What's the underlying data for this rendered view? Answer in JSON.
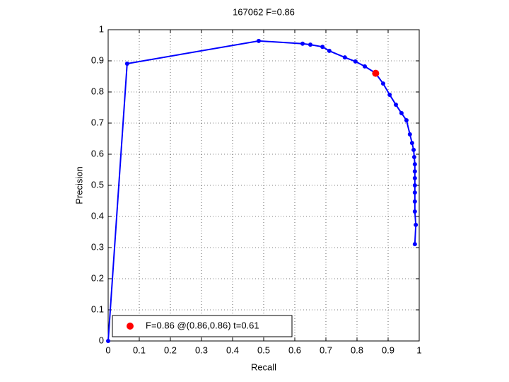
{
  "chart_data": {
    "type": "line",
    "title": "167062 F=0.86",
    "x_label": "Recall",
    "y_label": "Precision",
    "xlim": [
      0,
      1
    ],
    "ylim": [
      0,
      1
    ],
    "xticks": [
      0,
      0.1,
      0.2,
      0.3,
      0.4,
      0.5,
      0.6,
      0.7,
      0.8,
      0.9,
      1
    ],
    "yticks": [
      0,
      0.1,
      0.2,
      0.3,
      0.4,
      0.5,
      0.6,
      0.7,
      0.8,
      0.9,
      1
    ],
    "grid": true,
    "legend": "lower left",
    "series": [
      {
        "color": "#0000ff",
        "x": [
          0,
          0.061,
          0.484,
          0.625,
          0.65,
          0.689,
          0.711,
          0.761,
          0.795,
          0.825,
          0.859,
          0.884,
          0.905,
          0.925,
          0.943,
          0.959,
          0.97,
          0.977,
          0.982,
          0.984,
          0.986,
          0.986,
          0.986,
          0.986,
          0.986,
          0.986,
          0.986,
          0.989,
          0.986
        ],
        "values": [
          0,
          0.891,
          0.964,
          0.955,
          0.952,
          0.945,
          0.932,
          0.911,
          0.898,
          0.882,
          0.861,
          0.827,
          0.791,
          0.759,
          0.732,
          0.709,
          0.664,
          0.636,
          0.614,
          0.591,
          0.568,
          0.545,
          0.523,
          0.5,
          0.477,
          0.448,
          0.416,
          0.373,
          0.311
        ]
      },
      {
        "name": "F=0.86 @(0.86,0.86) t=0.61",
        "color": "#ff0000",
        "x": [
          0.86
        ],
        "values": [
          0.86
        ]
      }
    ]
  }
}
